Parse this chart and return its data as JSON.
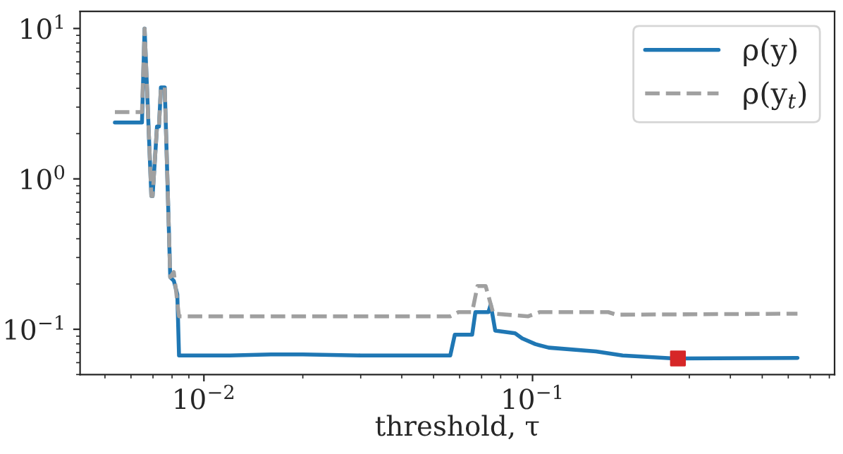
{
  "chart_data": {
    "type": "line",
    "xlabel": "threshold, τ",
    "log": "xy",
    "legend": "top right",
    "grid": false,
    "xlim": [
      0.0042,
      0.83
    ],
    "ylim": [
      0.05,
      13
    ],
    "xticks": [
      {
        "value": 0.01,
        "label": "10$^{−2}$"
      },
      {
        "value": 0.1,
        "label": "10$^{−1}$"
      }
    ],
    "yticks": [
      {
        "value": 0.1,
        "label": "10$^{−1}$"
      },
      {
        "value": 1,
        "label": "10$^{0}$"
      },
      {
        "value": 10,
        "label": "10$^{1}$"
      }
    ],
    "series": [
      {
        "name": "ρ(y)",
        "color": "#1f77b4",
        "line_style": "solid",
        "marker": "none",
        "x": [
          0.00536,
          0.00648,
          0.0066,
          0.00692,
          0.00698,
          0.0072,
          0.0073,
          0.0074,
          0.0076,
          0.0079,
          0.0081,
          0.0083,
          0.0084,
          0.012,
          0.016,
          0.02,
          0.03,
          0.0562,
          0.058,
          0.0655,
          0.067,
          0.0734,
          0.0746,
          0.077,
          0.0885,
          0.093,
          0.102,
          0.112,
          0.156,
          0.188,
          0.27,
          0.64
        ],
        "values": [
          2.37,
          2.37,
          10,
          0.77,
          0.77,
          2.23,
          2.23,
          4.06,
          4.06,
          0.222,
          0.21,
          0.171,
          0.067,
          0.067,
          0.068,
          0.068,
          0.067,
          0.067,
          0.092,
          0.092,
          0.13,
          0.13,
          0.146,
          0.098,
          0.094,
          0.087,
          0.0797,
          0.0755,
          0.0712,
          0.067,
          0.064,
          0.0645
        ]
      },
      {
        "name": "ρ(y$_{t}$)",
        "color": "#a0a0a0",
        "line_style": "dashed",
        "marker": "none",
        "x": [
          0.00536,
          0.00648,
          0.0066,
          0.00692,
          0.00698,
          0.0072,
          0.0073,
          0.0074,
          0.0076,
          0.0079,
          0.0081,
          0.0084,
          0.0562,
          0.0595,
          0.0655,
          0.068,
          0.072,
          0.076,
          0.097,
          0.105,
          0.17,
          0.18,
          0.64
        ],
        "values": [
          2.78,
          2.78,
          10,
          0.77,
          0.77,
          2.23,
          2.23,
          4.06,
          4.06,
          0.222,
          0.24,
          0.122,
          0.122,
          0.13,
          0.13,
          0.194,
          0.194,
          0.127,
          0.122,
          0.13,
          0.13,
          0.125,
          0.127
        ]
      },
      {
        "type": "scatter",
        "color": "#d62728",
        "marker": "square",
        "x": [
          0.277
        ],
        "values": [
          0.064
        ]
      }
    ]
  }
}
